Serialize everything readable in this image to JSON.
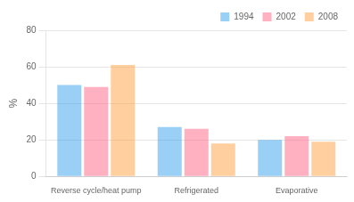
{
  "chart_data": {
    "type": "bar",
    "categories": [
      "Reverse cycle/heat pump",
      "Refrigerated",
      "Evaporative"
    ],
    "series": [
      {
        "name": "1994",
        "values": [
          50,
          27,
          20
        ]
      },
      {
        "name": "2002",
        "values": [
          49,
          26,
          22
        ]
      },
      {
        "name": "2008",
        "values": [
          61,
          18,
          19
        ]
      }
    ],
    "ylabel": "%",
    "ylim": [
      0,
      80
    ],
    "yticks": [
      0,
      20,
      40,
      60,
      80
    ],
    "grid": true,
    "legend": "upper right"
  }
}
